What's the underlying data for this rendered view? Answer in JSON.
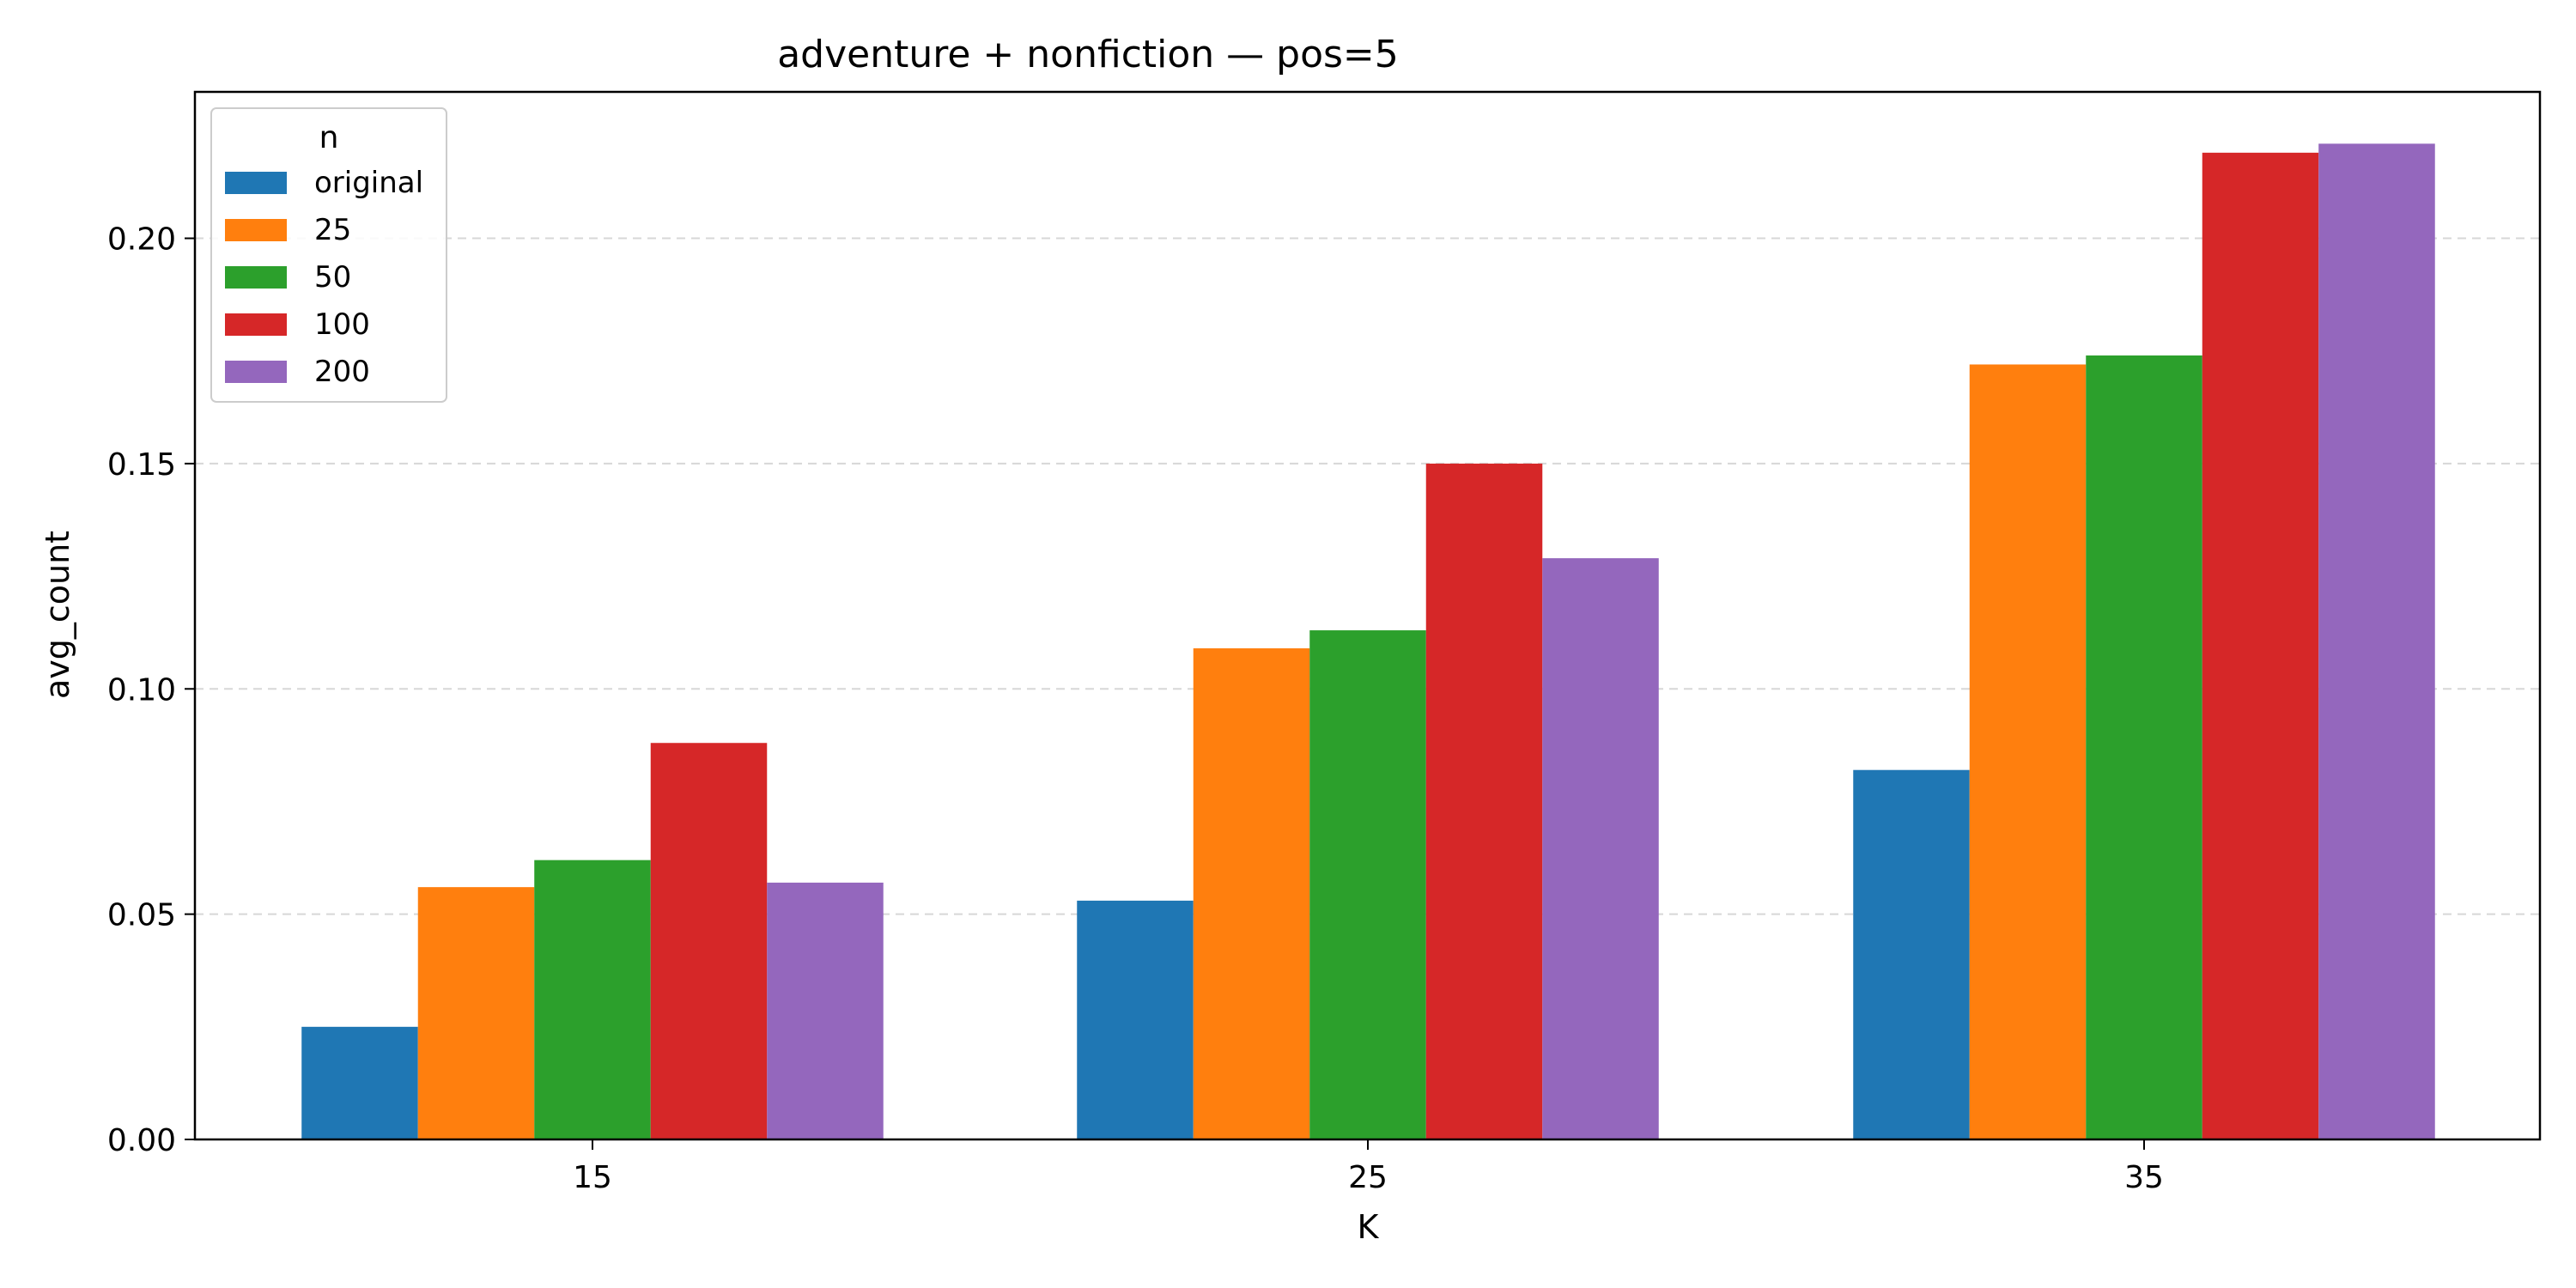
{
  "chart_data": {
    "type": "bar",
    "title": "adventure + nonfiction — pos=5",
    "xlabel": "K",
    "ylabel": "avg_count",
    "categories": [
      "15",
      "25",
      "35"
    ],
    "ylim": [
      0,
      0.2325
    ],
    "yticks": [
      0.0,
      0.05,
      0.1,
      0.15,
      0.2
    ],
    "ytick_labels": [
      "0.00",
      "0.05",
      "0.10",
      "0.15",
      "0.20"
    ],
    "grid": "y-dashed",
    "legend": {
      "title": "n",
      "placement": "top-left"
    },
    "series": [
      {
        "name": "original",
        "color": "#1f77b4",
        "values": [
          0.025,
          0.053,
          0.082
        ]
      },
      {
        "name": "25",
        "color": "#ff7f0e",
        "values": [
          0.056,
          0.109,
          0.172
        ]
      },
      {
        "name": "50",
        "color": "#2ca02c",
        "values": [
          0.062,
          0.113,
          0.174
        ]
      },
      {
        "name": "100",
        "color": "#d62728",
        "values": [
          0.088,
          0.15,
          0.219
        ]
      },
      {
        "name": "200",
        "color": "#9467bd",
        "values": [
          0.057,
          0.129,
          0.221
        ]
      }
    ]
  }
}
